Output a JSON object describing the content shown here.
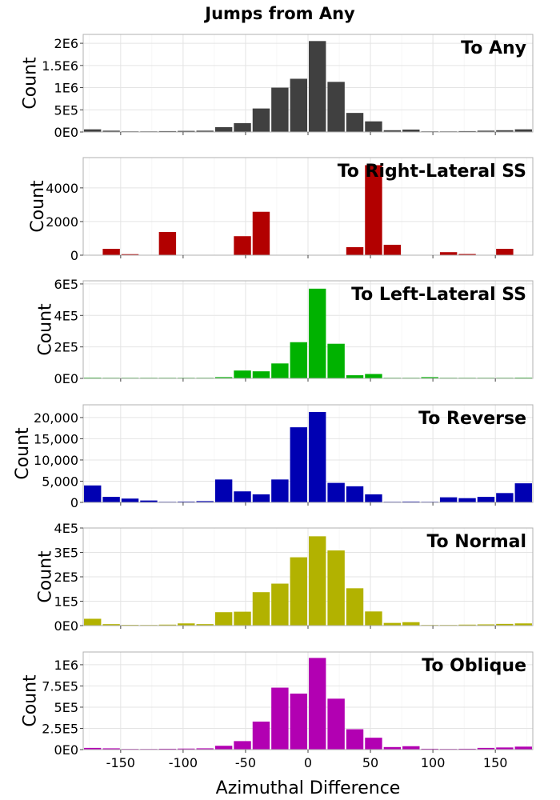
{
  "title": "Jumps from Any",
  "xlabel": "Azimuthal Difference",
  "ylabel": "Count",
  "chart_data": [
    {
      "type": "bar",
      "panel_label": "To Any",
      "color": "#404040",
      "xlim": [
        -180,
        180
      ],
      "x_ticks": [
        -150,
        -100,
        -50,
        0,
        50,
        100,
        150
      ],
      "x_tick_labels": [
        "-150",
        "-100",
        "-50",
        "0",
        "50",
        "100",
        "150"
      ],
      "ylim": [
        0,
        2200000
      ],
      "y_ticks": [
        0,
        500000,
        1000000,
        1500000,
        2000000
      ],
      "y_tick_labels": [
        "0E0",
        "5E5",
        "1E6",
        "1.5E6",
        "2E6"
      ],
      "bin_width": 15,
      "bin_centers": [
        -172.5,
        -157.5,
        -142.5,
        -127.5,
        -112.5,
        -97.5,
        -82.5,
        -67.5,
        -52.5,
        -37.5,
        -22.5,
        -7.5,
        7.5,
        22.5,
        37.5,
        52.5,
        67.5,
        82.5,
        97.5,
        112.5,
        127.5,
        142.5,
        157.5,
        172.5
      ],
      "values": [
        60000,
        30000,
        15000,
        10000,
        20000,
        25000,
        30000,
        110000,
        200000,
        530000,
        1000000,
        1200000,
        2050000,
        1130000,
        430000,
        240000,
        40000,
        55000,
        15000,
        10000,
        20000,
        30000,
        40000,
        60000
      ]
    },
    {
      "type": "bar",
      "panel_label": "To Right-Lateral SS",
      "color": "#b20000",
      "xlim": [
        -180,
        180
      ],
      "x_ticks": [
        -150,
        -100,
        -50,
        0,
        50,
        100,
        150
      ],
      "ylim": [
        0,
        5800
      ],
      "y_ticks": [
        0,
        2000,
        4000
      ],
      "y_tick_labels": [
        "0",
        "2000",
        "4000"
      ],
      "bin_width": 15,
      "bin_centers": [
        -172.5,
        -157.5,
        -142.5,
        -127.5,
        -112.5,
        -97.5,
        -82.5,
        -67.5,
        -52.5,
        -37.5,
        -22.5,
        -7.5,
        7.5,
        22.5,
        37.5,
        52.5,
        67.5,
        82.5,
        97.5,
        112.5,
        127.5,
        142.5,
        157.5,
        172.5
      ],
      "values": [
        0,
        380,
        60,
        0,
        1380,
        0,
        0,
        0,
        1130,
        2580,
        0,
        0,
        0,
        0,
        480,
        5350,
        620,
        0,
        0,
        180,
        70,
        0,
        380,
        0
      ]
    },
    {
      "type": "bar",
      "panel_label": "To Left-Lateral SS",
      "color": "#00b200",
      "xlim": [
        -180,
        180
      ],
      "x_ticks": [
        -150,
        -100,
        -50,
        0,
        50,
        100,
        150
      ],
      "ylim": [
        0,
        620000
      ],
      "y_ticks": [
        0,
        200000,
        400000,
        600000
      ],
      "y_tick_labels": [
        "0E0",
        "2E5",
        "4E5",
        "6E5"
      ],
      "bin_width": 15,
      "bin_centers": [
        -172.5,
        -157.5,
        -142.5,
        -127.5,
        -112.5,
        -97.5,
        -82.5,
        -67.5,
        -52.5,
        -37.5,
        -22.5,
        -7.5,
        7.5,
        22.5,
        37.5,
        52.5,
        67.5,
        82.5,
        97.5,
        112.5,
        127.5,
        142.5,
        157.5,
        172.5
      ],
      "values": [
        5000,
        4000,
        3000,
        1000,
        1500,
        500,
        3000,
        8000,
        50000,
        45000,
        95000,
        230000,
        570000,
        220000,
        20000,
        28000,
        1000,
        1500,
        8000,
        2000,
        1000,
        4000,
        4000,
        5000
      ]
    },
    {
      "type": "bar",
      "panel_label": "To Reverse",
      "color": "#0000b2",
      "xlim": [
        -180,
        180
      ],
      "x_ticks": [
        -150,
        -100,
        -50,
        0,
        50,
        100,
        150
      ],
      "ylim": [
        0,
        23000
      ],
      "y_ticks": [
        0,
        5000,
        10000,
        15000,
        20000
      ],
      "y_tick_labels": [
        "0",
        "5,000",
        "10,000",
        "15,000",
        "20,000"
      ],
      "bin_width": 15,
      "bin_centers": [
        -172.5,
        -157.5,
        -142.5,
        -127.5,
        -112.5,
        -97.5,
        -82.5,
        -67.5,
        -52.5,
        -37.5,
        -22.5,
        -7.5,
        7.5,
        22.5,
        37.5,
        52.5,
        67.5,
        82.5,
        97.5,
        112.5,
        127.5,
        142.5,
        157.5,
        172.5
      ],
      "values": [
        4000,
        1300,
        900,
        450,
        100,
        200,
        300,
        5400,
        2600,
        1900,
        5400,
        17700,
        21300,
        4600,
        3800,
        1900,
        100,
        200,
        100,
        1200,
        1000,
        1300,
        2200,
        4500
      ]
    },
    {
      "type": "bar",
      "panel_label": "To Normal",
      "color": "#b2b200",
      "xlim": [
        -180,
        180
      ],
      "x_ticks": [
        -150,
        -100,
        -50,
        0,
        50,
        100,
        150
      ],
      "ylim": [
        0,
        400000
      ],
      "y_ticks": [
        0,
        100000,
        200000,
        300000,
        400000
      ],
      "y_tick_labels": [
        "0E0",
        "1E5",
        "2E5",
        "3E5",
        "4E5"
      ],
      "bin_width": 15,
      "bin_centers": [
        -172.5,
        -157.5,
        -142.5,
        -127.5,
        -112.5,
        -97.5,
        -82.5,
        -67.5,
        -52.5,
        -37.5,
        -22.5,
        -7.5,
        7.5,
        22.5,
        37.5,
        52.5,
        67.5,
        82.5,
        97.5,
        112.5,
        127.5,
        142.5,
        157.5,
        172.5
      ],
      "values": [
        28000,
        6000,
        3000,
        2000,
        4000,
        9000,
        6000,
        55000,
        57000,
        137000,
        172000,
        280000,
        366000,
        308000,
        153000,
        58000,
        11000,
        14000,
        2000,
        2000,
        4000,
        5000,
        7000,
        9000
      ]
    },
    {
      "type": "bar",
      "panel_label": "To Oblique",
      "color": "#b200b2",
      "xlim": [
        -180,
        180
      ],
      "x_ticks": [
        -150,
        -100,
        -50,
        0,
        50,
        100,
        150
      ],
      "ylim": [
        0,
        1150000
      ],
      "y_ticks": [
        0,
        250000,
        500000,
        750000,
        1000000
      ],
      "y_tick_labels": [
        "0E0",
        "2.5E5",
        "5E5",
        "7.5E5",
        "1E6"
      ],
      "bin_width": 15,
      "bin_centers": [
        -172.5,
        -157.5,
        -142.5,
        -127.5,
        -112.5,
        -97.5,
        -82.5,
        -67.5,
        -52.5,
        -37.5,
        -22.5,
        -7.5,
        7.5,
        22.5,
        37.5,
        52.5,
        67.5,
        82.5,
        97.5,
        112.5,
        127.5,
        142.5,
        157.5,
        172.5
      ],
      "values": [
        20000,
        15000,
        8000,
        5000,
        10000,
        12000,
        15000,
        45000,
        100000,
        330000,
        730000,
        660000,
        1080000,
        600000,
        240000,
        140000,
        30000,
        40000,
        10000,
        8000,
        10000,
        20000,
        25000,
        35000
      ]
    }
  ]
}
